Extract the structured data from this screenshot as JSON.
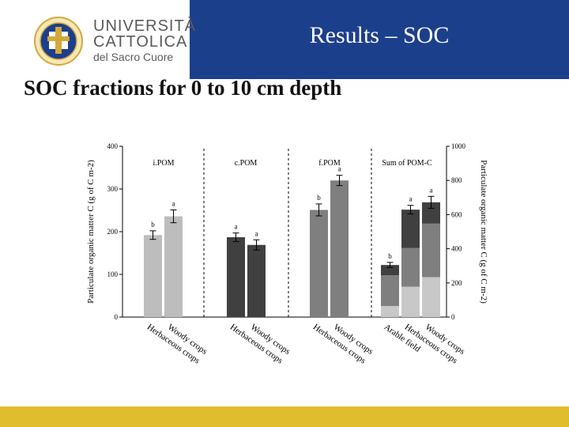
{
  "header": {
    "title": "Results – SOC",
    "logo_line1": "UNIVERSITÀ",
    "logo_line2": "CATTOLICA",
    "logo_line3": "del Sacro Cuore"
  },
  "subtitle": "SOC fractions for 0 to 10 cm depth",
  "colors": {
    "header": "#1c3f8c",
    "footer": "#e0bd2c"
  },
  "chart_data": {
    "type": "bar",
    "left_axis": {
      "label": "Particulate organic matter C (g of C m-2)",
      "ylim": [
        0,
        400
      ],
      "ticks": [
        0,
        100,
        200,
        300,
        400
      ]
    },
    "right_axis": {
      "label": "Particulate organic matter C (g of C m-2)",
      "ylim": [
        0,
        1000
      ],
      "ticks": [
        0,
        200,
        400,
        600,
        800,
        1000
      ]
    },
    "panels": [
      {
        "title": "i.POM",
        "axis": "left",
        "color": "#bdbdbd",
        "bars": [
          {
            "category": "Herbaceous crops",
            "value": 192,
            "err": 10,
            "letter": "b"
          },
          {
            "category": "Woody crops",
            "value": 236,
            "err": 15,
            "letter": "a"
          }
        ]
      },
      {
        "title": "c.POM",
        "axis": "left",
        "color": "#404040",
        "bars": [
          {
            "category": "Herbaceous crops",
            "value": 187,
            "err": 10,
            "letter": "a"
          },
          {
            "category": "Woody crops",
            "value": 169,
            "err": 12,
            "letter": "a"
          }
        ]
      },
      {
        "title": "f.POM",
        "axis": "left",
        "color": "#7f7f7f",
        "bars": [
          {
            "category": "Herbaceous crops",
            "value": 251,
            "err": 14,
            "letter": "b"
          },
          {
            "category": "Woody crops",
            "value": 320,
            "err": 12,
            "letter": "a"
          }
        ]
      },
      {
        "title": "Sum of POM-C",
        "axis": "right",
        "stacked": true,
        "segment_colors": [
          "#c8c8c8",
          "#7f7f7f",
          "#404040"
        ],
        "bars": [
          {
            "category": "Arable field",
            "segments": [
              65,
              180,
              60
            ],
            "err": 15,
            "letter": "b"
          },
          {
            "category": "Herbaceous crops",
            "segments": [
              178,
              226,
              225
            ],
            "err": 25,
            "letter": "a"
          },
          {
            "category": "Woody crops",
            "segments": [
              234,
              313,
              125
            ],
            "err": 35,
            "letter": "a"
          }
        ]
      }
    ]
  }
}
